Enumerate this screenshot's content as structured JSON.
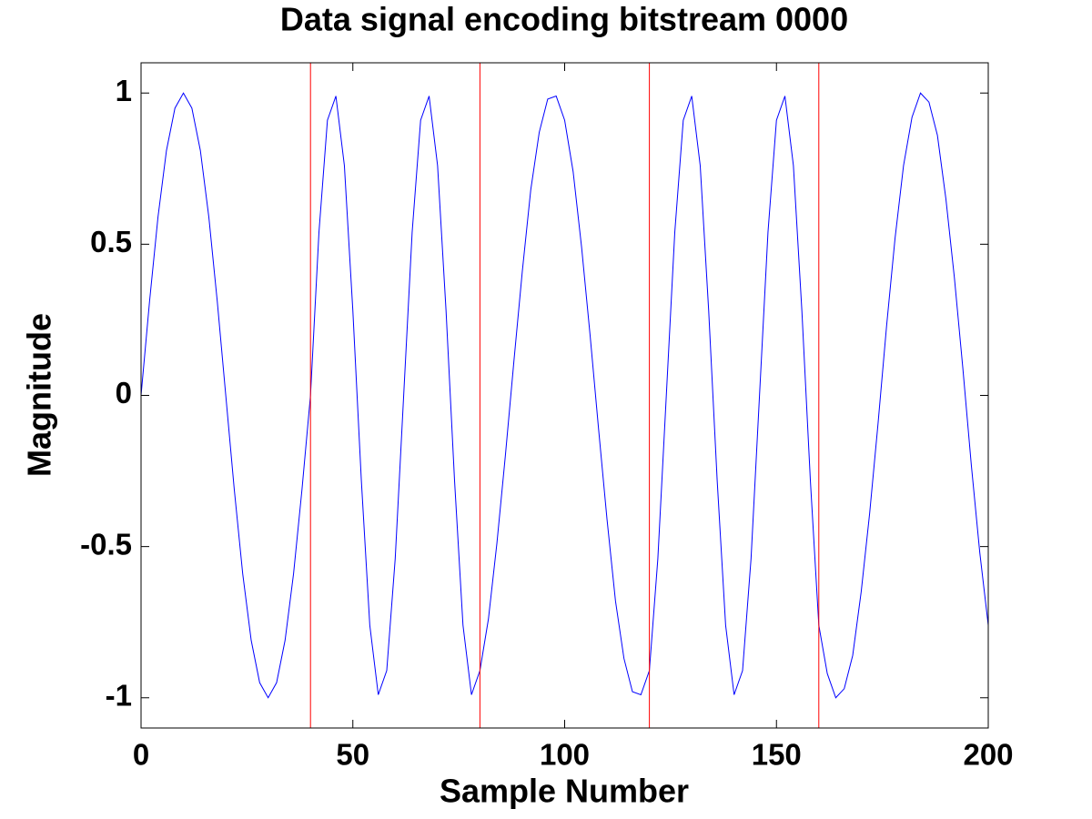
{
  "chart_data": {
    "type": "line",
    "title": "Data signal encoding bitstream 0000",
    "xlabel": "Sample Number",
    "ylabel": "Magnitude",
    "x": [
      0,
      2,
      4,
      6,
      8,
      10,
      12,
      14,
      16,
      18,
      20,
      22,
      24,
      26,
      28,
      30,
      32,
      34,
      36,
      38,
      40,
      42,
      44,
      46,
      48,
      50,
      52,
      54,
      56,
      58,
      60,
      62,
      64,
      66,
      68,
      70,
      72,
      74,
      76,
      78,
      80,
      82,
      84,
      86,
      88,
      90,
      92,
      94,
      96,
      98,
      100,
      102,
      104,
      106,
      108,
      110,
      112,
      114,
      116,
      118,
      120,
      122,
      124,
      126,
      128,
      130,
      132,
      134,
      136,
      138,
      140,
      142,
      144,
      146,
      148,
      150,
      152,
      154,
      156,
      158,
      160,
      162,
      164,
      166,
      168,
      170,
      172,
      174,
      176,
      178,
      180,
      182,
      184,
      186,
      188,
      190,
      192,
      194,
      196,
      198,
      200
    ],
    "values": [
      0,
      0.31,
      0.59,
      0.81,
      0.95,
      1,
      0.95,
      0.81,
      0.59,
      0.31,
      0,
      -0.31,
      -0.59,
      -0.81,
      -0.95,
      -1,
      -0.95,
      -0.81,
      -0.59,
      -0.31,
      0,
      0.54,
      0.91,
      0.99,
      0.76,
      0.28,
      -0.28,
      -0.76,
      -0.99,
      -0.91,
      -0.54,
      0,
      0.54,
      0.91,
      0.99,
      0.76,
      0.28,
      -0.28,
      -0.76,
      -0.99,
      -0.91,
      -0.74,
      -0.49,
      -0.2,
      0.11,
      0.41,
      0.68,
      0.87,
      0.98,
      0.99,
      0.91,
      0.74,
      0.49,
      0.2,
      -0.11,
      -0.41,
      -0.68,
      -0.87,
      -0.98,
      -0.99,
      -0.91,
      -0.54,
      0,
      0.54,
      0.91,
      0.99,
      0.76,
      0.28,
      -0.28,
      -0.76,
      -0.99,
      -0.91,
      -0.54,
      0,
      0.54,
      0.91,
      0.99,
      0.76,
      0.28,
      -0.28,
      -0.76,
      -0.92,
      -1,
      -0.97,
      -0.86,
      -0.65,
      -0.39,
      -0.09,
      0.23,
      0.52,
      0.76,
      0.92,
      1,
      0.97,
      0.86,
      0.65,
      0.39,
      0.09,
      -0.23,
      -0.52,
      -0.76
    ],
    "color": "#0000ff",
    "vlines": [
      40,
      80,
      120,
      160
    ],
    "vline_color": "#ff0000",
    "xlim": [
      0,
      200
    ],
    "xticks": [
      0,
      50,
      100,
      150,
      200
    ],
    "ylim": [
      -1.1,
      1.1
    ],
    "yticks": [
      -1,
      -0.5,
      0,
      0.5,
      1
    ]
  }
}
